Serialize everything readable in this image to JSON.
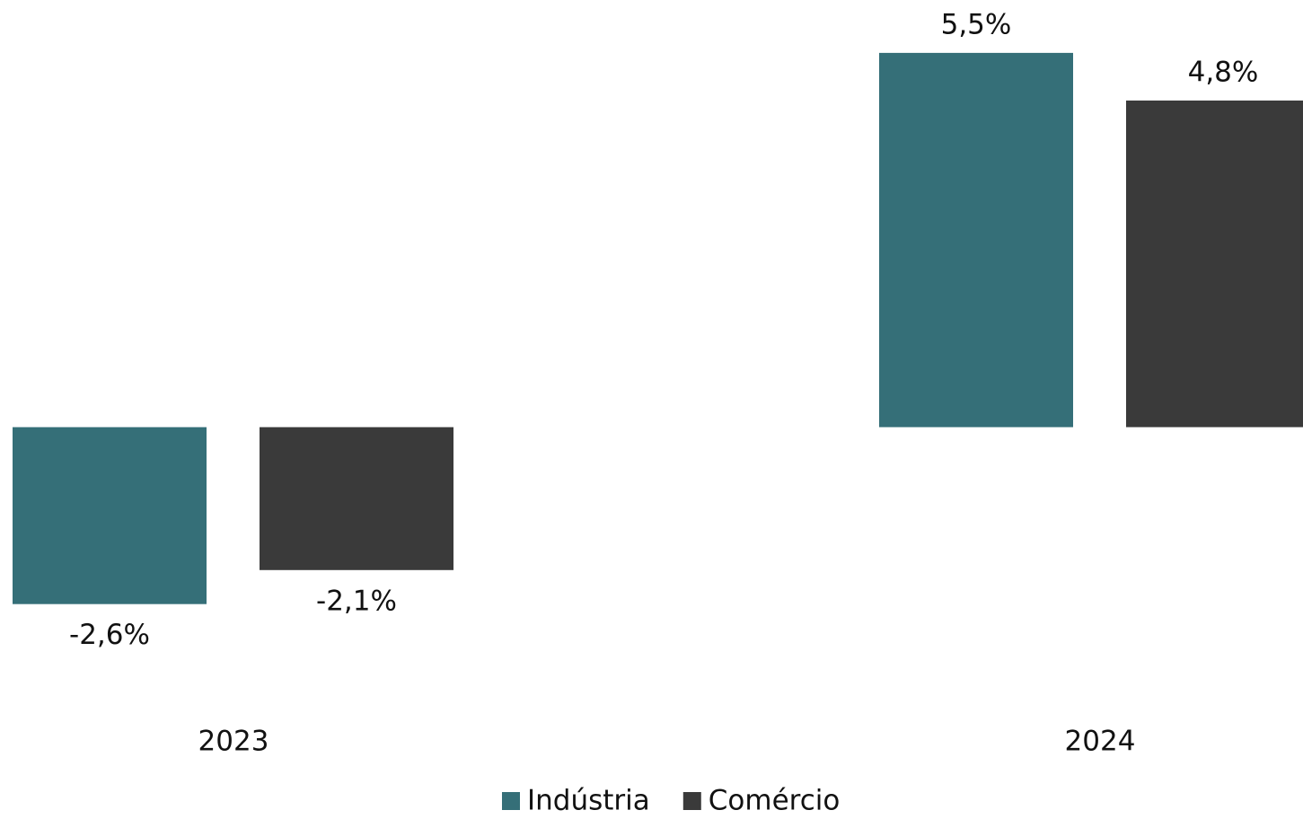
{
  "chart_data": {
    "type": "bar",
    "categories": [
      "2023",
      "2024"
    ],
    "series": [
      {
        "name": "Indústria",
        "color": "#356f78",
        "values": [
          -2.6,
          5.5
        ],
        "value_labels": [
          "-2,6%",
          "5,5%"
        ]
      },
      {
        "name": "Comércio",
        "color": "#3a3a3a",
        "values": [
          -2.1,
          4.8
        ],
        "value_labels": [
          "-2,1%",
          "4,8%"
        ]
      }
    ],
    "ylim": [
      -3,
      6
    ],
    "legend": "bottom"
  }
}
